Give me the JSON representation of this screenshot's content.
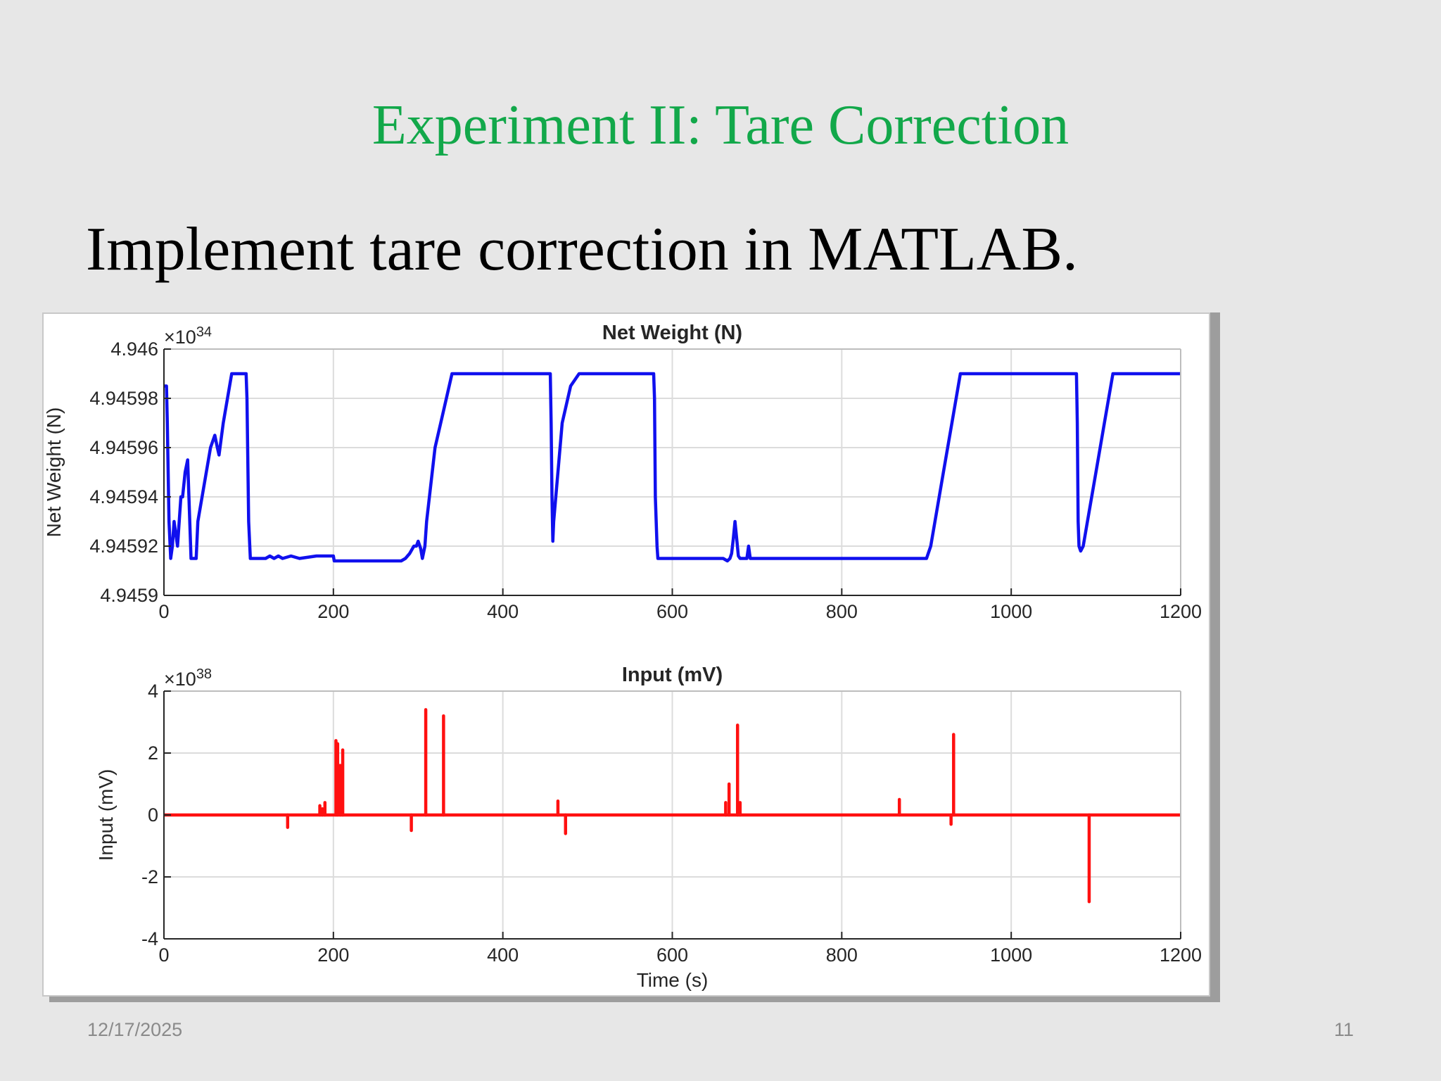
{
  "slide": {
    "title": "Experiment II: Tare Correction",
    "body": "Implement tare correction in MATLAB.",
    "date": "12/17/2025",
    "page_number": "11",
    "title_color": "#12a84a"
  },
  "chart_data": [
    {
      "type": "line",
      "title": "Net Weight (N)",
      "xlabel": "",
      "ylabel": "Net Weight (N)",
      "xlim": [
        0,
        1200
      ],
      "ylim": [
        4.9459,
        4.946
      ],
      "x_ticks": [
        "0",
        "200",
        "400",
        "600",
        "800",
        "1000",
        "1200"
      ],
      "y_ticks": [
        "4.9459",
        "4.94592",
        "4.94594",
        "4.94596",
        "4.94598",
        "4.946"
      ],
      "y_exponent_base": "×10",
      "y_exponent_power": "34",
      "grid": true,
      "legend": "none",
      "series": [
        {
          "color": "#1010ee",
          "x": [
            0,
            3,
            4,
            6,
            8,
            10,
            12,
            14,
            16,
            18,
            20,
            22,
            25,
            28,
            30,
            32,
            35,
            38,
            40,
            45,
            50,
            55,
            60,
            63,
            65,
            70,
            75,
            80,
            85,
            90,
            97,
            98,
            100,
            102,
            110,
            120,
            125,
            130,
            135,
            140,
            150,
            160,
            180,
            200,
            201,
            220,
            250,
            280,
            285,
            290,
            295,
            298,
            300,
            303,
            305,
            308,
            310,
            320,
            330,
            340,
            350,
            400,
            450,
            456,
            457,
            458,
            459,
            460,
            470,
            480,
            490,
            500,
            540,
            578,
            579,
            580,
            581,
            582,
            583,
            585,
            590,
            620,
            660,
            665,
            668,
            670,
            672,
            674,
            676,
            678,
            680,
            688,
            690,
            692,
            700,
            750,
            800,
            850,
            897,
            900,
            905,
            910,
            920,
            930,
            940,
            1000,
            1077,
            1078,
            1079,
            1080,
            1082,
            1085,
            1090,
            1100,
            1110,
            1120,
            1150,
            1200
          ],
          "y": [
            4.945985,
            4.945985,
            4.94597,
            4.94593,
            4.945915,
            4.94592,
            4.94593,
            4.945925,
            4.94592,
            4.94593,
            4.94594,
            4.94594,
            4.94595,
            4.945955,
            4.945935,
            4.945915,
            4.945915,
            4.945915,
            4.94593,
            4.94594,
            4.94595,
            4.94596,
            4.945965,
            4.94596,
            4.945957,
            4.94597,
            4.94598,
            4.94599,
            4.94599,
            4.94599,
            4.94599,
            4.94598,
            4.94593,
            4.945915,
            4.945915,
            4.945915,
            4.945916,
            4.945915,
            4.945916,
            4.945915,
            4.945916,
            4.945915,
            4.945916,
            4.945916,
            4.945914,
            4.945914,
            4.945914,
            4.945914,
            4.945915,
            4.945917,
            4.94592,
            4.94592,
            4.945922,
            4.945919,
            4.945915,
            4.94592,
            4.94593,
            4.94596,
            4.945975,
            4.94599,
            4.94599,
            4.94599,
            4.94599,
            4.94599,
            4.94597,
            4.94594,
            4.945922,
            4.94593,
            4.94597,
            4.945985,
            4.94599,
            4.94599,
            4.94599,
            4.94599,
            4.94598,
            4.94594,
            4.94593,
            4.94592,
            4.945915,
            4.945915,
            4.945915,
            4.945915,
            4.945915,
            4.945914,
            4.945915,
            4.945917,
            4.945923,
            4.94593,
            4.945923,
            4.945916,
            4.945915,
            4.945915,
            4.94592,
            4.945915,
            4.945915,
            4.945915,
            4.945915,
            4.945915,
            4.945915,
            4.945915,
            4.94592,
            4.94593,
            4.94595,
            4.94597,
            4.94599,
            4.94599,
            4.94599,
            4.94597,
            4.94593,
            4.94592,
            4.945918,
            4.94592,
            4.94593,
            4.94595,
            4.94597,
            4.94599,
            4.94599,
            4.94599
          ]
        }
      ]
    },
    {
      "type": "line",
      "title": "Input (mV)",
      "xlabel": "Time (s)",
      "ylabel": "Input (mV)",
      "xlim": [
        0,
        1200
      ],
      "ylim": [
        -4,
        4
      ],
      "x_ticks": [
        "0",
        "200",
        "400",
        "600",
        "800",
        "1000",
        "1200"
      ],
      "y_ticks": [
        "-4",
        "-2",
        "0",
        "2",
        "4"
      ],
      "y_exponent_base": "×10",
      "y_exponent_power": "38",
      "grid": true,
      "legend": "none",
      "series": [
        {
          "color": "#ff1010",
          "baseline": 0,
          "spikes": [
            {
              "x": 146,
              "y": -0.4
            },
            {
              "x": 184,
              "y": 0.3
            },
            {
              "x": 187,
              "y": 0.2
            },
            {
              "x": 190,
              "y": 0.4
            },
            {
              "x": 203,
              "y": 2.4
            },
            {
              "x": 205,
              "y": 2.3
            },
            {
              "x": 208,
              "y": 1.6
            },
            {
              "x": 211,
              "y": 2.1
            },
            {
              "x": 292,
              "y": -0.5
            },
            {
              "x": 309,
              "y": 3.4
            },
            {
              "x": 330,
              "y": 3.2
            },
            {
              "x": 465,
              "y": 0.45
            },
            {
              "x": 474,
              "y": -0.6
            },
            {
              "x": 663,
              "y": 0.4
            },
            {
              "x": 667,
              "y": 1.0
            },
            {
              "x": 677,
              "y": 2.9
            },
            {
              "x": 680,
              "y": 0.4
            },
            {
              "x": 868,
              "y": 0.5
            },
            {
              "x": 929,
              "y": -0.3
            },
            {
              "x": 932,
              "y": 2.6
            },
            {
              "x": 1092,
              "y": -2.8
            }
          ]
        }
      ]
    }
  ]
}
